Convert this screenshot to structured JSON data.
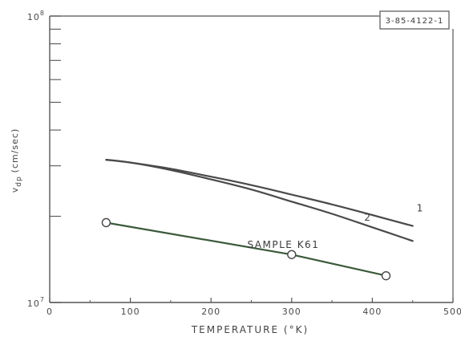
{
  "chart_data": {
    "type": "line",
    "title": "",
    "figure_id": "3-85-4122-1",
    "xlabel": "TEMPERATURE (°K)",
    "ylabel": "v_dp (cm/sec)",
    "ylabel_main": "v",
    "ylabel_sub": "dp",
    "ylabel_unit": "(cm/sec)",
    "x_ticks": [
      "0",
      "100",
      "200",
      "300",
      "400",
      "500"
    ],
    "y_tick_labels": [
      {
        "base": "10",
        "exp": "7",
        "value": 10000000
      },
      {
        "base": "10",
        "exp": "8",
        "value": 100000000
      }
    ],
    "xlim": [
      0,
      500
    ],
    "ylim": [
      10000000,
      100000000
    ],
    "y_scale": "log",
    "grid": false,
    "series": [
      {
        "name": "1",
        "color": "#4a4a4a",
        "markers": false,
        "x": [
          70,
          100,
          150,
          200,
          250,
          300,
          350,
          400,
          450
        ],
        "y": [
          31500000,
          30800000,
          29300000,
          27500000,
          25700000,
          23800000,
          22000000,
          20200000,
          18500000
        ]
      },
      {
        "name": "2",
        "color": "#4a4a4a",
        "markers": false,
        "x": [
          70,
          100,
          150,
          200,
          250,
          300,
          350,
          400,
          450
        ],
        "y": [
          31500000,
          30800000,
          29000000,
          26900000,
          24800000,
          22500000,
          20400000,
          18300000,
          16400000
        ]
      },
      {
        "name": "SAMPLE K61",
        "color": "#3c5a3c",
        "markers": true,
        "marker_x": [
          70,
          300,
          417
        ],
        "marker_y": [
          19000000,
          14700000,
          12400000
        ],
        "x": [
          70,
          300,
          417
        ],
        "y": [
          19000000,
          14700000,
          12400000
        ]
      }
    ],
    "annotations": [
      {
        "text": "1",
        "x": 455,
        "y": 20800000
      },
      {
        "text": "2",
        "x": 390,
        "y": 19300000
      },
      {
        "text": "SAMPLE K61",
        "x": 245,
        "y": 15500000
      }
    ],
    "colors": {
      "axis": "#555555",
      "line": "#4a4a4a",
      "marker_fill": "#ffffff"
    }
  }
}
